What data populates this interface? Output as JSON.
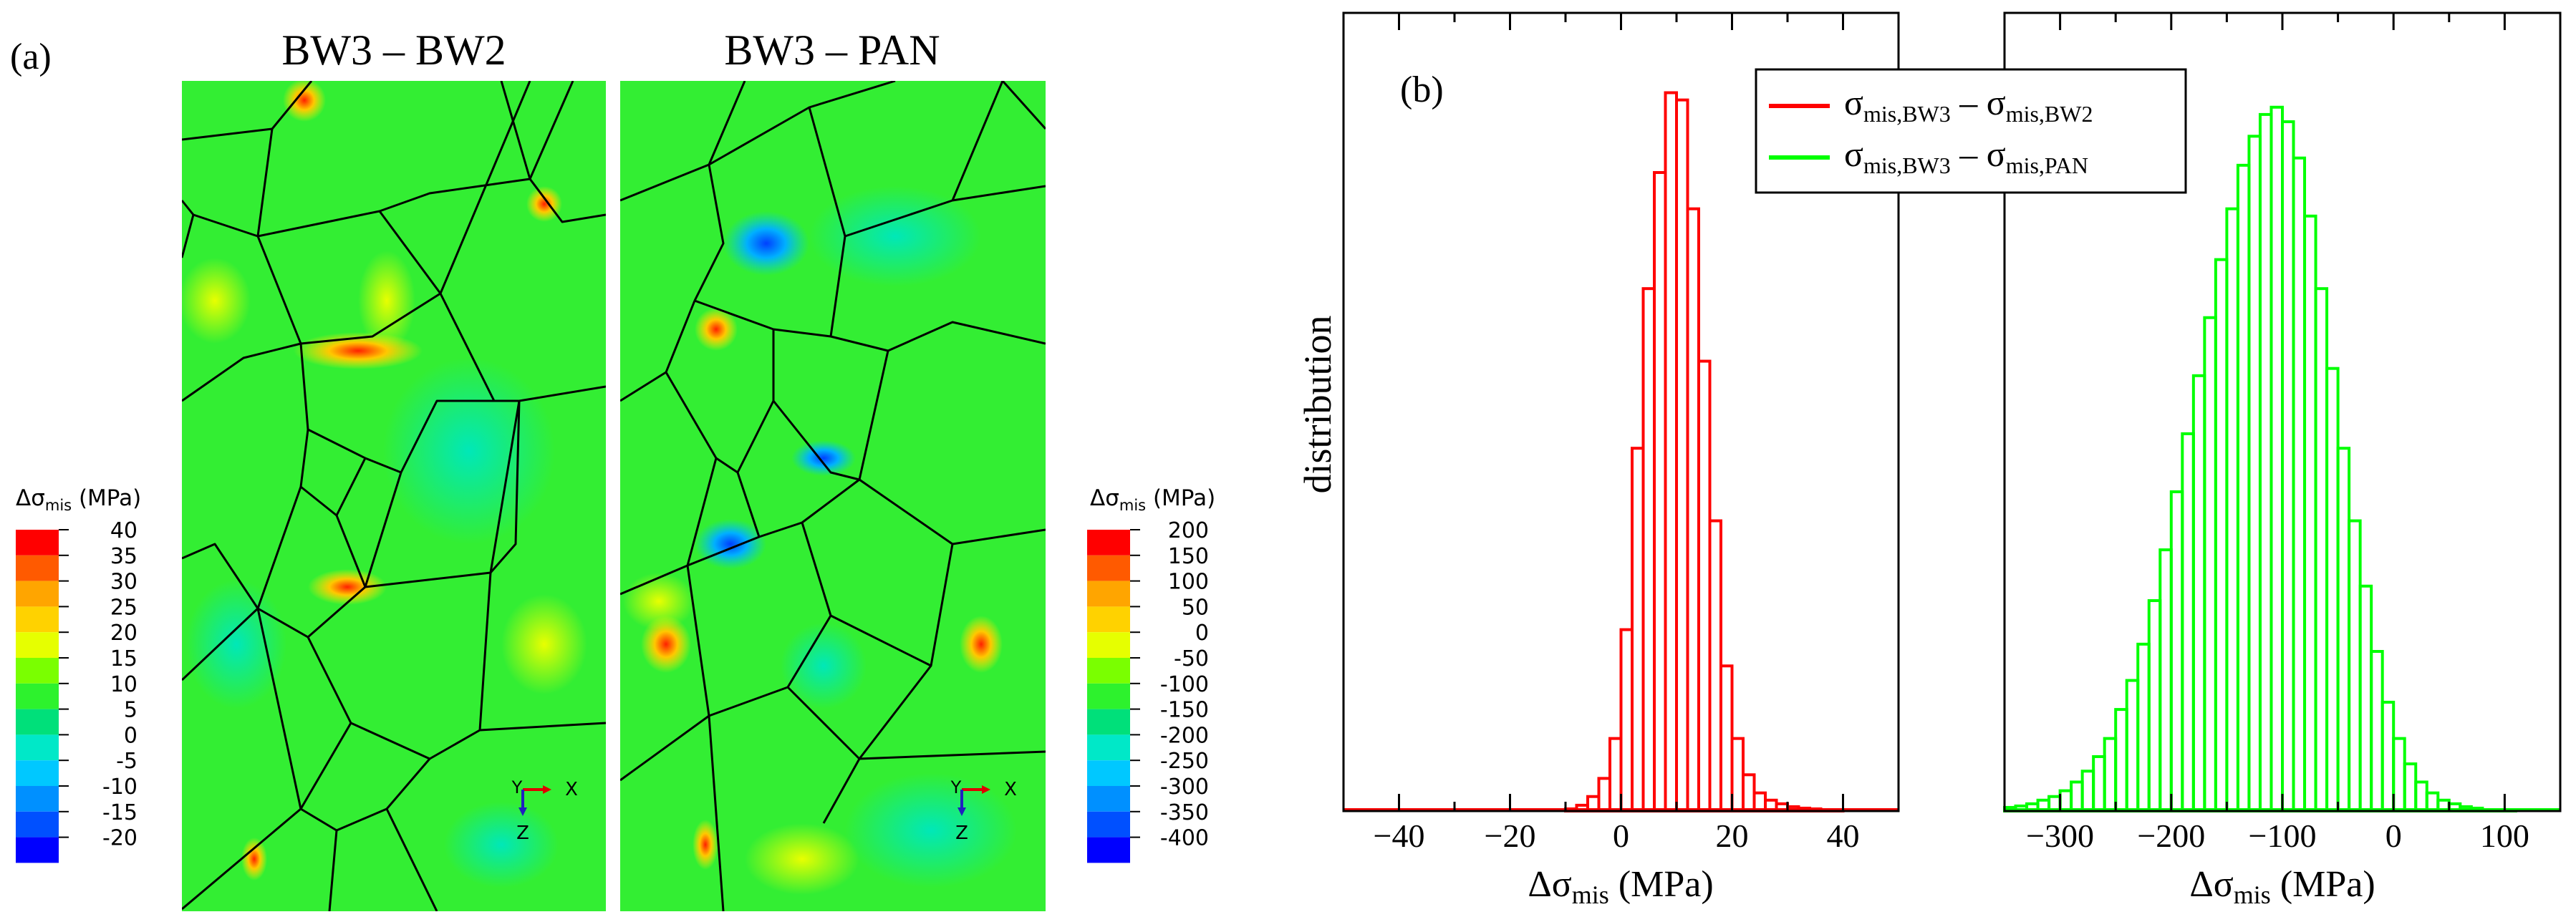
{
  "panel_a": {
    "label": "(a)",
    "map_titles": [
      "BW3 – BW2",
      "BW3 – PAN"
    ],
    "legend_title_prefix": "Δσ",
    "legend_title_sub": "mis",
    "legend_title_unit": " (MPa)",
    "legend_left_ticks": [
      "40",
      "35",
      "30",
      "25",
      "20",
      "15",
      "10",
      "5",
      "0",
      "-5",
      "-10",
      "-15",
      "-20"
    ],
    "legend_right_ticks": [
      "200",
      "150",
      "100",
      "50",
      "0",
      "-50",
      "-100",
      "-150",
      "-200",
      "-250",
      "-300",
      "-350",
      "-400"
    ],
    "legend_colors": [
      "#ff0000",
      "#ff5a00",
      "#ffa500",
      "#ffd200",
      "#e6ff00",
      "#7aff00",
      "#2df22d",
      "#00e07a",
      "#00e8c8",
      "#00c8ff",
      "#0090ff",
      "#0050ff",
      "#0000ff"
    ],
    "triad": {
      "y_label": "Y",
      "x_label": "X",
      "z_label": "Z"
    }
  },
  "panel_b": {
    "label": "(b)"
  },
  "chart_data": [
    {
      "type": "bar",
      "title": "",
      "xlabel_main": "Δσ",
      "xlabel_sub": "mis",
      "xlabel_unit": " (MPa)",
      "ylabel": "distribution",
      "xlim": [
        -50,
        50
      ],
      "ylim": [
        0,
        1.1
      ],
      "x_ticks": [
        -40,
        -20,
        0,
        20,
        40
      ],
      "bin_width": 2,
      "bin_start": -10,
      "color": "#ff0000",
      "values": [
        0.003,
        0.008,
        0.02,
        0.045,
        0.1,
        0.25,
        0.5,
        0.72,
        0.88,
        0.99,
        0.98,
        0.83,
        0.62,
        0.4,
        0.2,
        0.1,
        0.05,
        0.025,
        0.015,
        0.01,
        0.006,
        0.004,
        0.003,
        0.002,
        0.001
      ]
    },
    {
      "type": "bar",
      "title": "",
      "xlabel_main": "Δσ",
      "xlabel_sub": "mis",
      "xlabel_unit": " (MPa)",
      "xlim": [
        -350,
        150
      ],
      "ylim": [
        0,
        1.1
      ],
      "x_ticks": [
        -300,
        -200,
        -100,
        0,
        100
      ],
      "bin_width": 10,
      "bin_start": -350,
      "color": "#00ff00",
      "values": [
        0.005,
        0.007,
        0.01,
        0.015,
        0.02,
        0.028,
        0.04,
        0.055,
        0.075,
        0.1,
        0.14,
        0.18,
        0.23,
        0.29,
        0.36,
        0.44,
        0.52,
        0.6,
        0.68,
        0.76,
        0.83,
        0.89,
        0.93,
        0.96,
        0.97,
        0.95,
        0.9,
        0.82,
        0.72,
        0.61,
        0.5,
        0.4,
        0.31,
        0.22,
        0.15,
        0.1,
        0.065,
        0.04,
        0.025,
        0.015,
        0.01,
        0.006,
        0.004,
        0.002,
        0.001,
        0.001,
        0.0,
        0.0,
        0.0,
        0.0
      ]
    }
  ],
  "legend": {
    "entries": [
      {
        "color": "#ff0000",
        "left_sub": "mis,BW3",
        "right_sub": "mis,BW2"
      },
      {
        "color": "#00ff00",
        "left_sub": "mis,BW3",
        "right_sub": "mis,PAN"
      }
    ],
    "symbol": "σ",
    "minus": " – "
  }
}
